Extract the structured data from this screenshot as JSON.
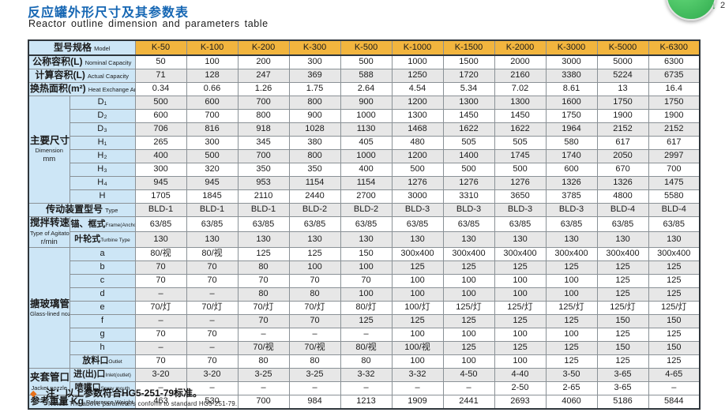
{
  "page": {
    "title_zh": "反应罐外形尺寸及其参数表",
    "title_en": "Reactor outline dimension and parameters table"
  },
  "widget": {
    "arrow": "↓",
    "count": "2"
  },
  "notes": {
    "bullet": "◆",
    "zh": "注：以上参数符合HG5-251-79标准。",
    "en": "Notes: The above parameters conform to standard HG5-251-79."
  },
  "colors": {
    "title_blue": "#1566b3",
    "header_gold": "#f2b53e",
    "label_blue": "#cde6f6",
    "stripe_gray": "#e7e7e7",
    "note_orange": "#e8721c"
  },
  "table": {
    "model_header": {
      "zh": "型号规格",
      "en": "Model"
    },
    "columns": [
      "K-50",
      "K-100",
      "K-200",
      "K-300",
      "K-500",
      "K-1000",
      "K-1500",
      "K-2000",
      "K-3000",
      "K-5000",
      "K-6300"
    ],
    "sections": [
      {
        "rows": [
          {
            "zh": "公称容积(L)",
            "en": "Nominal Capacity",
            "shade": "w",
            "values": [
              "50",
              "100",
              "200",
              "300",
              "500",
              "1000",
              "1500",
              "2000",
              "3000",
              "5000",
              "6300"
            ]
          },
          {
            "zh": "计算容积(L)",
            "en": "Actual Capacity",
            "shade": "g",
            "values": [
              "71",
              "128",
              "247",
              "369",
              "588",
              "1250",
              "1720",
              "2160",
              "3380",
              "5224",
              "6735"
            ]
          },
          {
            "zh": "换热面积(m²)",
            "en": "Heat Exchange Area",
            "shade": "w",
            "values": [
              "0.34",
              "0.66",
              "1.26",
              "1.75",
              "2.64",
              "4.54",
              "5.34",
              "7.02",
              "8.61",
              "13",
              "16.4"
            ]
          }
        ]
      },
      {
        "group": {
          "zh": "主要尺寸",
          "en": "Dimension",
          "en2": "mm"
        },
        "rows": [
          {
            "sub": "D₁",
            "shade": "g",
            "values": [
              "500",
              "600",
              "700",
              "800",
              "900",
              "1200",
              "1300",
              "1300",
              "1600",
              "1750",
              "1750"
            ]
          },
          {
            "sub": "D₂",
            "shade": "w",
            "values": [
              "600",
              "700",
              "800",
              "900",
              "1000",
              "1300",
              "1450",
              "1450",
              "1750",
              "1900",
              "1900"
            ]
          },
          {
            "sub": "D₃",
            "shade": "g",
            "values": [
              "706",
              "816",
              "918",
              "1028",
              "1130",
              "1468",
              "1622",
              "1622",
              "1964",
              "2152",
              "2152"
            ]
          },
          {
            "sub": "H₁",
            "shade": "w",
            "values": [
              "265",
              "300",
              "345",
              "380",
              "405",
              "480",
              "505",
              "505",
              "580",
              "617",
              "617"
            ]
          },
          {
            "sub": "H₂",
            "shade": "g",
            "values": [
              "400",
              "500",
              "700",
              "800",
              "1000",
              "1200",
              "1400",
              "1745",
              "1740",
              "2050",
              "2997"
            ]
          },
          {
            "sub": "H₃",
            "shade": "w",
            "values": [
              "300",
              "320",
              "350",
              "350",
              "400",
              "500",
              "500",
              "500",
              "600",
              "670",
              "700"
            ]
          },
          {
            "sub": "H₄",
            "shade": "g",
            "values": [
              "945",
              "945",
              "953",
              "1154",
              "1154",
              "1276",
              "1276",
              "1276",
              "1326",
              "1326",
              "1475"
            ]
          },
          {
            "sub": "H",
            "shade": "w",
            "values": [
              "1705",
              "1845",
              "2110",
              "2440",
              "2700",
              "3000",
              "3310",
              "3650",
              "3785",
              "4800",
              "5580"
            ]
          }
        ]
      },
      {
        "rows": [
          {
            "zh": "传动装置型号",
            "en": "Type",
            "shade": "g",
            "values": [
              "BLD-1",
              "BLD-1",
              "BLD-1",
              "BLD-2",
              "BLD-2",
              "BLD-3",
              "BLD-3",
              "BLD-3",
              "BLD-3",
              "BLD-4",
              "BLD-4"
            ]
          }
        ]
      },
      {
        "group": {
          "zh": "搅拌转速",
          "en": "Type of Agitators",
          "en2": "r/min"
        },
        "rows": [
          {
            "sub_zh": "锚、框式",
            "sub_en": "Frame(Anchor)Type",
            "shade": "w",
            "values": [
              "63/85",
              "63/85",
              "63/85",
              "63/85",
              "63/85",
              "63/85",
              "63/85",
              "63/85",
              "63/85",
              "63/85",
              "63/85"
            ]
          },
          {
            "sub_zh": "叶轮式",
            "sub_en": "Turbine Type",
            "shade": "g",
            "values": [
              "130",
              "130",
              "130",
              "130",
              "130",
              "130",
              "130",
              "130",
              "130",
              "130",
              "130"
            ]
          }
        ]
      },
      {
        "group": {
          "zh": "搪玻璃管口",
          "en": "Glass-lined nozzle"
        },
        "rows": [
          {
            "sub": "a",
            "shade": "w",
            "values": [
              "80/视",
              "80/视",
              "125",
              "125",
              "150",
              "300x400",
              "300x400",
              "300x400",
              "300x400",
              "300x400",
              "300x400"
            ]
          },
          {
            "sub": "b",
            "shade": "g",
            "values": [
              "70",
              "70",
              "80",
              "100",
              "100",
              "125",
              "125",
              "125",
              "125",
              "125",
              "125"
            ]
          },
          {
            "sub": "c",
            "shade": "w",
            "values": [
              "70",
              "70",
              "70",
              "70",
              "70",
              "100",
              "100",
              "100",
              "100",
              "125",
              "125"
            ]
          },
          {
            "sub": "d",
            "shade": "g",
            "values": [
              "–",
              "–",
              "80",
              "80",
              "100",
              "100",
              "100",
              "100",
              "100",
              "125",
              "125"
            ]
          },
          {
            "sub": "e",
            "shade": "w",
            "values": [
              "70/灯",
              "70/灯",
              "70/灯",
              "70/灯",
              "80/灯",
              "100/灯",
              "125/灯",
              "125/灯",
              "125/灯",
              "125/灯",
              "125/灯"
            ]
          },
          {
            "sub": "f",
            "shade": "g",
            "values": [
              "–",
              "–",
              "70",
              "70",
              "125",
              "125",
              "125",
              "125",
              "125",
              "150",
              "150"
            ]
          },
          {
            "sub": "g",
            "shade": "w",
            "values": [
              "70",
              "70",
              "–",
              "–",
              "–",
              "100",
              "100",
              "100",
              "100",
              "125",
              "125"
            ]
          },
          {
            "sub": "h",
            "shade": "g",
            "values": [
              "–",
              "–",
              "70/视",
              "70/视",
              "80/视",
              "100/视",
              "125",
              "125",
              "125",
              "150",
              "150"
            ]
          },
          {
            "sub_zh": "放料口",
            "sub_en": "Outlet",
            "shade": "w",
            "values": [
              "70",
              "70",
              "80",
              "80",
              "80",
              "100",
              "100",
              "100",
              "125",
              "125",
              "125"
            ]
          }
        ]
      },
      {
        "group": {
          "zh": "夹套管口",
          "en": "Jacket nozzle"
        },
        "rows": [
          {
            "sub_zh": "进(出)口",
            "sub_en": "Inlet(outlet)",
            "shade": "g",
            "values": [
              "3-20",
              "3-20",
              "3-25",
              "3-25",
              "3-32",
              "3-32",
              "4-50",
              "4-40",
              "3-50",
              "3-65",
              "4-65"
            ]
          },
          {
            "sub_zh": "喷嘴口",
            "sub_en": "Spray mouth",
            "shade": "w",
            "values": [
              "–",
              "–",
              "–",
              "–",
              "–",
              "–",
              "–",
              "2-50",
              "2-65",
              "3-65",
              "–"
            ]
          }
        ]
      },
      {
        "rows": [
          {
            "zh": "参考重量 Kg",
            "en": "Reference Weight",
            "shade": "w",
            "values": [
              "463",
              "530",
              "700",
              "984",
              "1213",
              "1909",
              "2441",
              "2693",
              "4060",
              "5186",
              "5844"
            ]
          }
        ]
      }
    ]
  }
}
